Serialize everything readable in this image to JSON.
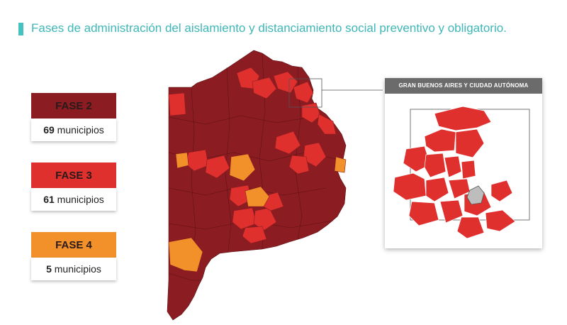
{
  "title": "Fases de administración del aislamiento y distanciamiento social preventivo y obligatorio.",
  "colors": {
    "accent": "#46c2c0",
    "fase2": "#8b1c21",
    "fase3": "#e0302e",
    "fase4": "#f2902a"
  },
  "legend": [
    {
      "label": "FASE 2",
      "count": "69",
      "unit": "municipios"
    },
    {
      "label": "FASE 3",
      "count": "61",
      "unit": "municipios"
    },
    {
      "label": "FASE 4",
      "count": "5",
      "unit": "municipios"
    }
  ],
  "inset": {
    "header": "GRAN BUENOS AIRES Y CIUDAD AUTÓNOMA"
  }
}
